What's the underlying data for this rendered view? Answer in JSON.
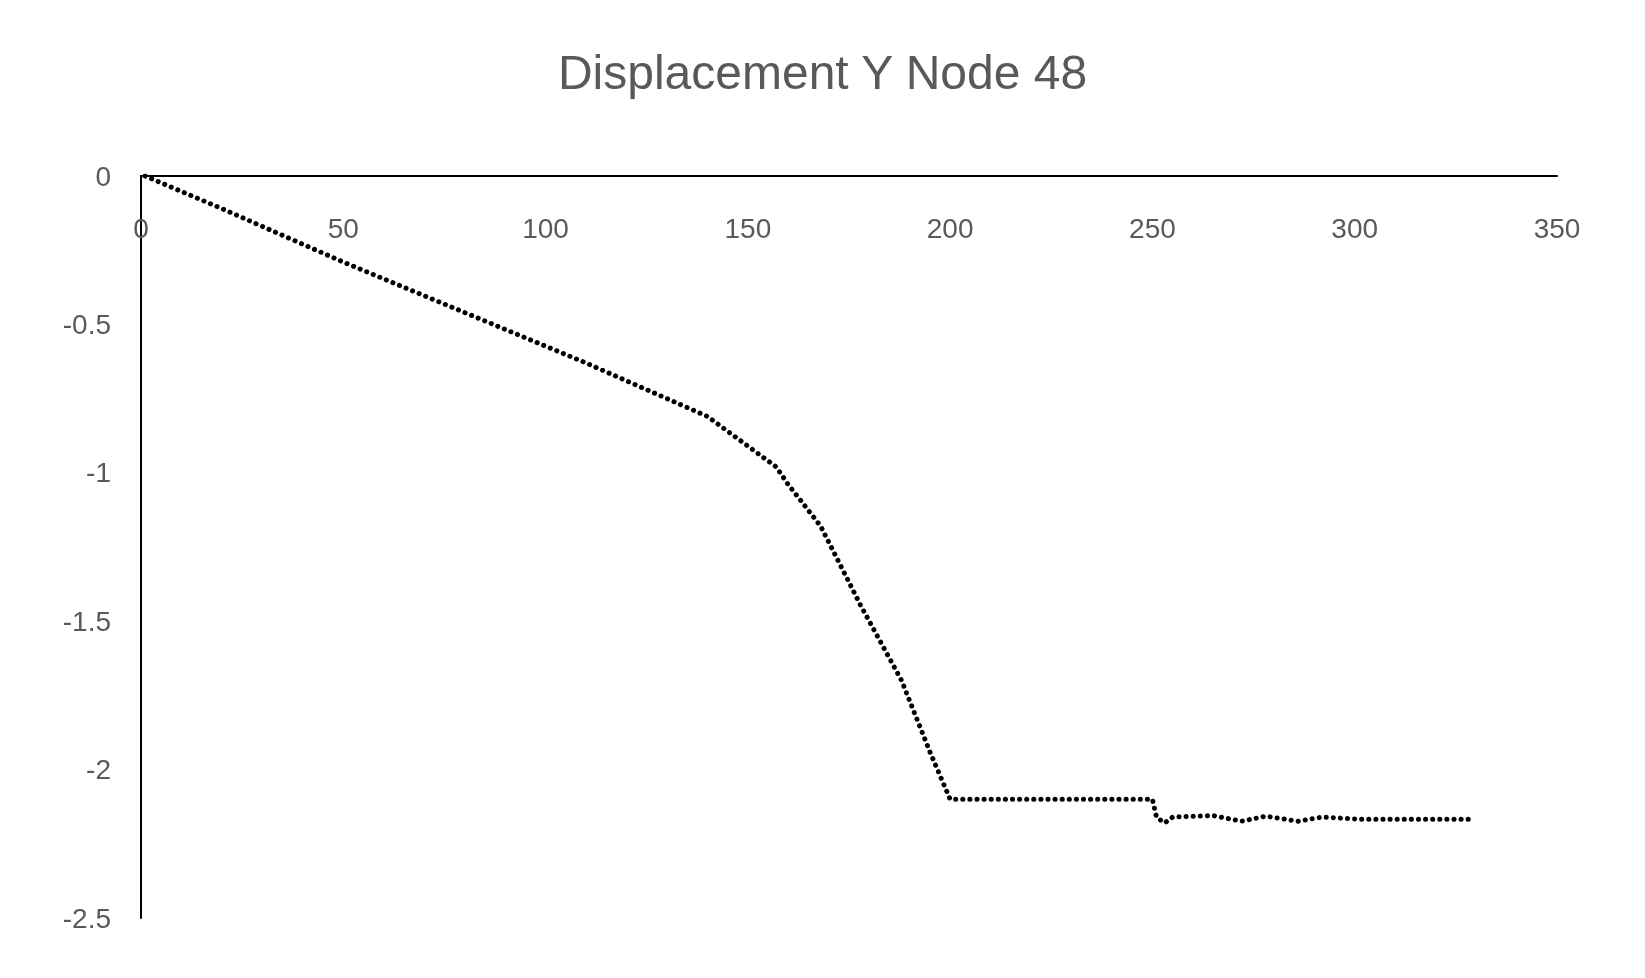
{
  "chart_data": {
    "type": "line",
    "title": "Displacement Y Node 48",
    "x": [
      1,
      20,
      50,
      80,
      110,
      140,
      157,
      160,
      168,
      178,
      188,
      195,
      200,
      225,
      250,
      251,
      253,
      255,
      265,
      272,
      278,
      286,
      292,
      301,
      315,
      329
    ],
    "series": [
      {
        "color": "#000000",
        "values": [
          0,
          -0.11,
          -0.29,
          -0.46,
          -0.63,
          -0.81,
          -0.98,
          -1.04,
          -1.18,
          -1.45,
          -1.7,
          -1.94,
          -2.1,
          -2.1,
          -2.1,
          -2.16,
          -2.18,
          -2.16,
          -2.155,
          -2.174,
          -2.157,
          -2.174,
          -2.16,
          -2.167,
          -2.167,
          -2.167
        ]
      }
    ],
    "xlim": [
      0,
      350
    ],
    "xticks": [
      0,
      50,
      100,
      150,
      200,
      250,
      300,
      350
    ],
    "ylim": [
      -2.5,
      0
    ],
    "yticks": [
      0,
      -0.5,
      -1,
      -1.5,
      -2,
      -2.5
    ],
    "grid": false,
    "marker": "none",
    "line_style": "dotted"
  }
}
